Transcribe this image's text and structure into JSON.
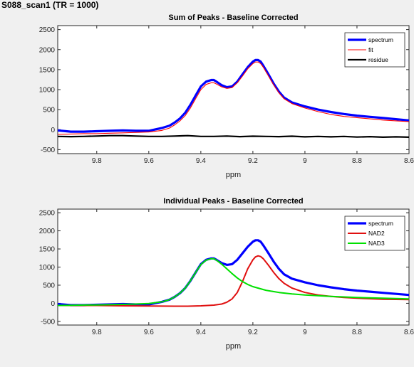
{
  "figure_title": "S088_scan1 (TR = 1000)",
  "colors": {
    "spectrum": "#0000ff",
    "fit": "#ff0000",
    "residue": "#000000",
    "NAD2": "#e01010",
    "NAD3": "#00e000"
  },
  "chart_data": [
    {
      "type": "line",
      "title": "Sum of Peaks - Baseline Corrected",
      "xlabel": "ppm",
      "ylabel": "",
      "xlim": [
        9.95,
        8.6
      ],
      "x_reversed": true,
      "ylim": [
        -600,
        2600
      ],
      "xticks": [
        "9.8",
        "9.6",
        "9.4",
        "9.2",
        "9",
        "8.8",
        "8.6"
      ],
      "yticks": [
        "-500",
        "0",
        "500",
        "1000",
        "1500",
        "2000",
        "2500"
      ],
      "legend_position": "top-right",
      "series": [
        {
          "name": "spectrum",
          "color": "#0000ff",
          "x": [
            9.95,
            9.9,
            9.85,
            9.8,
            9.75,
            9.7,
            9.65,
            9.6,
            9.55,
            9.52,
            9.5,
            9.48,
            9.46,
            9.44,
            9.42,
            9.4,
            9.38,
            9.36,
            9.35,
            9.34,
            9.32,
            9.3,
            9.28,
            9.26,
            9.24,
            9.22,
            9.2,
            9.19,
            9.18,
            9.17,
            9.16,
            9.14,
            9.12,
            9.1,
            9.08,
            9.05,
            9.0,
            8.95,
            8.9,
            8.85,
            8.8,
            8.75,
            8.7,
            8.65,
            8.6
          ],
          "y": [
            -20,
            -50,
            -50,
            -40,
            -30,
            -20,
            -30,
            -30,
            40,
            100,
            180,
            280,
            420,
            620,
            850,
            1080,
            1200,
            1240,
            1240,
            1200,
            1110,
            1060,
            1080,
            1200,
            1380,
            1560,
            1700,
            1740,
            1740,
            1700,
            1600,
            1380,
            1150,
            950,
            800,
            680,
            580,
            500,
            440,
            390,
            350,
            320,
            290,
            260,
            230
          ]
        },
        {
          "name": "fit",
          "color": "#ff0000",
          "x": [
            9.95,
            9.9,
            9.85,
            9.8,
            9.75,
            9.7,
            9.65,
            9.6,
            9.55,
            9.52,
            9.5,
            9.48,
            9.46,
            9.44,
            9.42,
            9.4,
            9.38,
            9.36,
            9.35,
            9.34,
            9.32,
            9.3,
            9.28,
            9.26,
            9.24,
            9.22,
            9.2,
            9.19,
            9.18,
            9.17,
            9.16,
            9.14,
            9.12,
            9.1,
            9.08,
            9.05,
            9.0,
            8.95,
            8.9,
            8.85,
            8.8,
            8.75,
            8.7,
            8.65,
            8.6
          ],
          "y": [
            -120,
            -110,
            -100,
            -100,
            -90,
            -80,
            -70,
            -60,
            -20,
            40,
            120,
            220,
            350,
            540,
            770,
            1000,
            1130,
            1170,
            1170,
            1140,
            1070,
            1030,
            1050,
            1170,
            1340,
            1520,
            1650,
            1690,
            1690,
            1650,
            1560,
            1340,
            1120,
            920,
            770,
            650,
            540,
            450,
            380,
            330,
            300,
            270,
            240,
            220,
            200
          ]
        },
        {
          "name": "residue",
          "color": "#000000",
          "x": [
            9.95,
            9.9,
            9.85,
            9.8,
            9.75,
            9.7,
            9.65,
            9.6,
            9.55,
            9.5,
            9.45,
            9.4,
            9.35,
            9.3,
            9.25,
            9.2,
            9.15,
            9.1,
            9.05,
            9.0,
            8.95,
            8.9,
            8.85,
            8.8,
            8.75,
            8.7,
            8.65,
            8.6
          ],
          "y": [
            -170,
            -175,
            -170,
            -160,
            -150,
            -150,
            -160,
            -170,
            -170,
            -160,
            -150,
            -170,
            -170,
            -160,
            -175,
            -165,
            -170,
            -175,
            -165,
            -180,
            -170,
            -180,
            -170,
            -185,
            -175,
            -190,
            -180,
            -190
          ]
        }
      ]
    },
    {
      "type": "line",
      "title": "Individual Peaks - Baseline Corrected",
      "xlabel": "ppm",
      "ylabel": "",
      "xlim": [
        9.95,
        8.6
      ],
      "x_reversed": true,
      "ylim": [
        -600,
        2600
      ],
      "xticks": [
        "9.8",
        "9.6",
        "9.4",
        "9.2",
        "9",
        "8.8",
        "8.6"
      ],
      "yticks": [
        "-500",
        "0",
        "500",
        "1000",
        "1500",
        "2000",
        "2500"
      ],
      "legend_position": "top-right",
      "series": [
        {
          "name": "spectrum",
          "color": "#0000ff",
          "x": [
            9.95,
            9.9,
            9.85,
            9.8,
            9.75,
            9.7,
            9.65,
            9.6,
            9.55,
            9.52,
            9.5,
            9.48,
            9.46,
            9.44,
            9.42,
            9.4,
            9.38,
            9.36,
            9.35,
            9.34,
            9.32,
            9.3,
            9.28,
            9.26,
            9.24,
            9.22,
            9.2,
            9.19,
            9.18,
            9.17,
            9.16,
            9.14,
            9.12,
            9.1,
            9.08,
            9.05,
            9.0,
            8.95,
            8.9,
            8.85,
            8.8,
            8.75,
            8.7,
            8.65,
            8.6
          ],
          "y": [
            -20,
            -50,
            -50,
            -40,
            -30,
            -20,
            -30,
            -30,
            40,
            100,
            180,
            280,
            420,
            620,
            850,
            1080,
            1200,
            1240,
            1240,
            1200,
            1110,
            1060,
            1080,
            1200,
            1380,
            1560,
            1700,
            1740,
            1740,
            1700,
            1600,
            1380,
            1150,
            950,
            800,
            680,
            580,
            500,
            440,
            390,
            350,
            320,
            290,
            260,
            230
          ]
        },
        {
          "name": "NAD2",
          "color": "#e01010",
          "x": [
            9.95,
            9.8,
            9.7,
            9.6,
            9.5,
            9.45,
            9.4,
            9.35,
            9.32,
            9.3,
            9.28,
            9.26,
            9.24,
            9.22,
            9.2,
            9.19,
            9.18,
            9.17,
            9.16,
            9.14,
            9.12,
            9.1,
            9.08,
            9.05,
            9.0,
            8.95,
            8.9,
            8.85,
            8.8,
            8.7,
            8.6
          ],
          "y": [
            -60,
            -60,
            -70,
            -75,
            -80,
            -80,
            -70,
            -50,
            -20,
            30,
            120,
            300,
            600,
            950,
            1200,
            1280,
            1310,
            1290,
            1230,
            1050,
            850,
            680,
            550,
            420,
            300,
            230,
            190,
            160,
            140,
            110,
            100
          ]
        },
        {
          "name": "NAD3",
          "color": "#00e000",
          "x": [
            9.95,
            9.9,
            9.8,
            9.7,
            9.65,
            9.6,
            9.55,
            9.52,
            9.5,
            9.48,
            9.46,
            9.44,
            9.42,
            9.4,
            9.38,
            9.36,
            9.35,
            9.34,
            9.32,
            9.3,
            9.28,
            9.26,
            9.24,
            9.22,
            9.2,
            9.15,
            9.1,
            9.05,
            9.0,
            8.9,
            8.8,
            8.7,
            8.6
          ],
          "y": [
            -60,
            -55,
            -45,
            -30,
            -20,
            -5,
            40,
            100,
            180,
            280,
            420,
            620,
            850,
            1070,
            1190,
            1230,
            1230,
            1190,
            1080,
            950,
            820,
            700,
            600,
            520,
            460,
            360,
            300,
            260,
            230,
            190,
            160,
            140,
            120
          ]
        }
      ]
    }
  ]
}
